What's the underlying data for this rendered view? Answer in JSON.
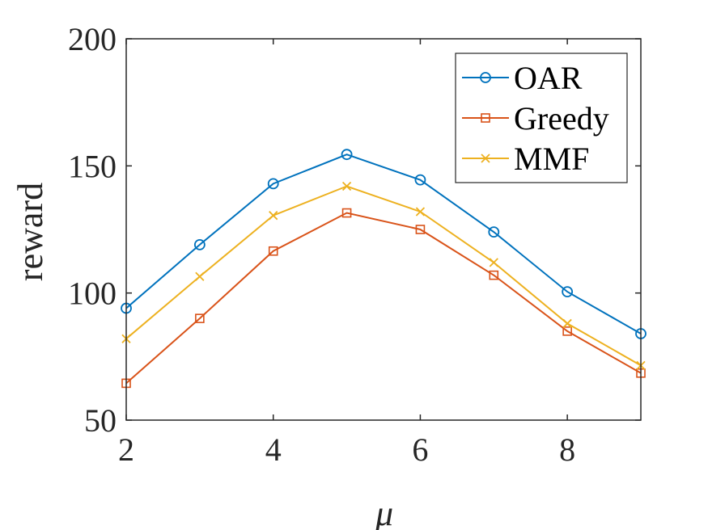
{
  "chart_data": {
    "type": "line",
    "xlabel": "μ",
    "ylabel": "reward",
    "xlim": [
      2,
      9
    ],
    "ylim": [
      50,
      200
    ],
    "xticks": [
      2,
      4,
      6,
      8
    ],
    "yticks": [
      50,
      100,
      150,
      200
    ],
    "grid": false,
    "legend_position": "top-right",
    "x": [
      2,
      3,
      4,
      5,
      6,
      7,
      8,
      9
    ],
    "series": [
      {
        "name": "OAR",
        "color": "#0072BD",
        "marker": "circle",
        "values": [
          94,
          119,
          143,
          154.5,
          144.5,
          124,
          100.5,
          84
        ]
      },
      {
        "name": "Greedy",
        "color": "#D95319",
        "marker": "square",
        "values": [
          64.5,
          90,
          116.5,
          131.5,
          125,
          107,
          85,
          68.5
        ]
      },
      {
        "name": "MMF",
        "color": "#EDB120",
        "marker": "x",
        "values": [
          82,
          106.5,
          130.5,
          142,
          132,
          112,
          88,
          71.5
        ]
      }
    ]
  }
}
